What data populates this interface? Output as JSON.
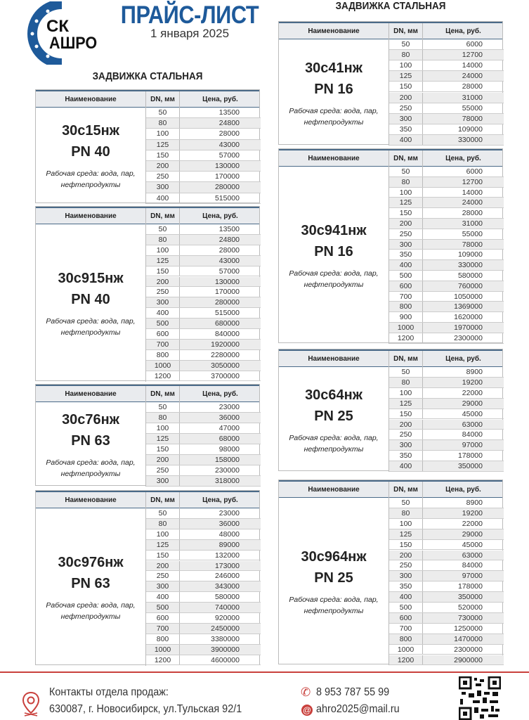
{
  "logo": {
    "line1": "СК",
    "line2": "АШРО",
    "color": "#1e5a9a"
  },
  "header": {
    "title": "ПРАЙС-ЛИСТ",
    "date": "1 января 2025"
  },
  "sections": {
    "left_title": "ЗАДВИЖКА СТАЛЬНАЯ",
    "right_title": "ЗАДВИЖКА СТАЛЬНАЯ"
  },
  "columns": {
    "name": "Наименование",
    "dn": "DN, мм",
    "price": "Цена, руб."
  },
  "tables": [
    {
      "model": "30с15нж",
      "pn": "PN 40",
      "media": [
        "Рабочая среда: вода, пар,",
        "нефтепродукты"
      ],
      "rows": [
        [
          "50",
          "13500"
        ],
        [
          "80",
          "24800"
        ],
        [
          "100",
          "28000"
        ],
        [
          "125",
          "43000"
        ],
        [
          "150",
          "57000"
        ],
        [
          "200",
          "130000"
        ],
        [
          "250",
          "170000"
        ],
        [
          "300",
          "280000"
        ],
        [
          "400",
          "515000"
        ]
      ]
    },
    {
      "model": "30с915нж",
      "pn": "PN 40",
      "media": [
        "Рабочая среда: вода, пар,",
        "нефтепродукты"
      ],
      "rows": [
        [
          "50",
          "13500"
        ],
        [
          "80",
          "24800"
        ],
        [
          "100",
          "28000"
        ],
        [
          "125",
          "43000"
        ],
        [
          "150",
          "57000"
        ],
        [
          "200",
          "130000"
        ],
        [
          "250",
          "170000"
        ],
        [
          "300",
          "280000"
        ],
        [
          "400",
          "515000"
        ],
        [
          "500",
          "680000"
        ],
        [
          "600",
          "840000"
        ],
        [
          "700",
          "1920000"
        ],
        [
          "800",
          "2280000"
        ],
        [
          "1000",
          "3050000"
        ],
        [
          "1200",
          "3700000"
        ]
      ]
    },
    {
      "model": "30с76нж",
      "pn": "PN 63",
      "media": [
        "Рабочая среда: вода, пар,",
        "нефтепродукты"
      ],
      "rows": [
        [
          "50",
          "23000"
        ],
        [
          "80",
          "36000"
        ],
        [
          "100",
          "47000"
        ],
        [
          "125",
          "68000"
        ],
        [
          "150",
          "98000"
        ],
        [
          "200",
          "158000"
        ],
        [
          "250",
          "230000"
        ],
        [
          "300",
          "318000"
        ]
      ]
    },
    {
      "model": "30с976нж",
      "pn": "PN 63",
      "media": [
        "Рабочая среда: вода, пар,",
        "нефтепродукты"
      ],
      "rows": [
        [
          "50",
          "23000"
        ],
        [
          "80",
          "36000"
        ],
        [
          "100",
          "48000"
        ],
        [
          "125",
          "89000"
        ],
        [
          "150",
          "132000"
        ],
        [
          "200",
          "173000"
        ],
        [
          "250",
          "246000"
        ],
        [
          "300",
          "343000"
        ],
        [
          "400",
          "580000"
        ],
        [
          "500",
          "740000"
        ],
        [
          "600",
          "920000"
        ],
        [
          "700",
          "2450000"
        ],
        [
          "800",
          "3380000"
        ],
        [
          "1000",
          "3900000"
        ],
        [
          "1200",
          "4600000"
        ]
      ]
    },
    {
      "model": "30с41нж",
      "pn": "PN 16",
      "media": [
        "Рабочая среда: вода, пар,",
        "нефтепродукты"
      ],
      "rows": [
        [
          "50",
          "6000"
        ],
        [
          "80",
          "12700"
        ],
        [
          "100",
          "14000"
        ],
        [
          "125",
          "24000"
        ],
        [
          "150",
          "28000"
        ],
        [
          "200",
          "31000"
        ],
        [
          "250",
          "55000"
        ],
        [
          "300",
          "78000"
        ],
        [
          "350",
          "109000"
        ],
        [
          "400",
          "330000"
        ]
      ]
    },
    {
      "model": "30с941нж",
      "pn": "PN 16",
      "media": [
        "Рабочая среда: вода, пар,",
        "нефтепродукты"
      ],
      "rows": [
        [
          "50",
          "6000"
        ],
        [
          "80",
          "12700"
        ],
        [
          "100",
          "14000"
        ],
        [
          "125",
          "24000"
        ],
        [
          "150",
          "28000"
        ],
        [
          "200",
          "31000"
        ],
        [
          "250",
          "55000"
        ],
        [
          "300",
          "78000"
        ],
        [
          "350",
          "109000"
        ],
        [
          "400",
          "330000"
        ],
        [
          "500",
          "580000"
        ],
        [
          "600",
          "760000"
        ],
        [
          "700",
          "1050000"
        ],
        [
          "800",
          "1369000"
        ],
        [
          "900",
          "1620000"
        ],
        [
          "1000",
          "1970000"
        ],
        [
          "1200",
          "2300000"
        ]
      ]
    },
    {
      "model": "30с64нж",
      "pn": "PN 25",
      "media": [
        "Рабочая среда: вода, пар,",
        "нефтепродукты"
      ],
      "rows": [
        [
          "50",
          "8900"
        ],
        [
          "80",
          "19200"
        ],
        [
          "100",
          "22000"
        ],
        [
          "125",
          "29000"
        ],
        [
          "150",
          "45000"
        ],
        [
          "200",
          "63000"
        ],
        [
          "250",
          "84000"
        ],
        [
          "300",
          "97000"
        ],
        [
          "350",
          "178000"
        ],
        [
          "400",
          "350000"
        ]
      ]
    },
    {
      "model": "30с964нж",
      "pn": "PN 25",
      "media": [
        "Рабочая среда: вода, пар,",
        "нефтепродукты"
      ],
      "rows": [
        [
          "50",
          "8900"
        ],
        [
          "80",
          "19200"
        ],
        [
          "100",
          "22000"
        ],
        [
          "125",
          "29000"
        ],
        [
          "150",
          "45000"
        ],
        [
          "200",
          "63000"
        ],
        [
          "250",
          "84000"
        ],
        [
          "300",
          "97000"
        ],
        [
          "350",
          "178000"
        ],
        [
          "400",
          "350000"
        ],
        [
          "500",
          "520000"
        ],
        [
          "600",
          "730000"
        ],
        [
          "700",
          "1250000"
        ],
        [
          "800",
          "1470000"
        ],
        [
          "1000",
          "2300000"
        ],
        [
          "1200",
          "2900000"
        ]
      ]
    }
  ],
  "footer": {
    "contacts_label": "Контакты отдела продаж:",
    "address": "630087, г. Новосибирск, ул.Тульская 92/1",
    "phone": "8 953 787 55 99",
    "email": "ahro2025@mail.ru",
    "accent_color": "#c9403c"
  }
}
